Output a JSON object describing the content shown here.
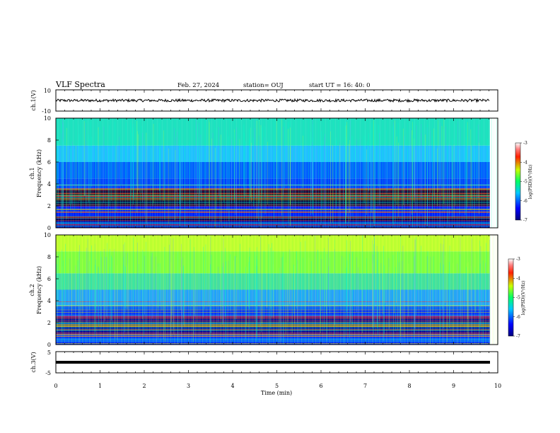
{
  "header": {
    "title": "VLF Spectra",
    "date": "Feb. 27, 2024",
    "station": "station= OUJ",
    "start": "start  UT =   16: 40: 0"
  },
  "chart_data": [
    {
      "type": "line",
      "name": "ch1-waveform",
      "ylabel": "ch.1(V)",
      "ylim": [
        -10,
        10
      ],
      "yticks": [
        "10",
        "-10"
      ],
      "baseline": 0
    },
    {
      "type": "heatmap",
      "name": "ch1-spectrogram",
      "ylabel_line1": "ch.1",
      "ylabel_line2": "Frequency (kHz)",
      "ylim": [
        0,
        10
      ],
      "yticks": [
        "0",
        "2",
        "4",
        "6",
        "8",
        "10"
      ],
      "colorbar": {
        "label": "log(PSD)(V²/Hz)",
        "range": [
          -7,
          -3
        ],
        "ticks": [
          "-3",
          "-4",
          "-5",
          "-6",
          "-7"
        ]
      }
    },
    {
      "type": "heatmap",
      "name": "ch2-spectrogram",
      "ylabel_line1": "ch.2",
      "ylabel_line2": "Frequency (kHz)",
      "ylim": [
        0,
        10
      ],
      "yticks": [
        "0",
        "2",
        "4",
        "6",
        "8",
        "10"
      ],
      "colorbar": {
        "label": "log(PSD)(V²/Hz)",
        "range": [
          -7,
          -3
        ],
        "ticks": [
          "-3",
          "-4",
          "-5",
          "-6",
          "-7"
        ]
      }
    },
    {
      "type": "line",
      "name": "ch3-waveform",
      "ylabel": "ch.3(V)",
      "ylim": [
        -5,
        5
      ],
      "yticks": [
        "5",
        "-5"
      ],
      "baseline": 0
    }
  ],
  "xaxis": {
    "label": "Time (min)",
    "xlim": [
      0,
      10
    ],
    "ticks": [
      "0",
      "1",
      "2",
      "3",
      "4",
      "5",
      "6",
      "7",
      "8",
      "9",
      "10"
    ]
  }
}
